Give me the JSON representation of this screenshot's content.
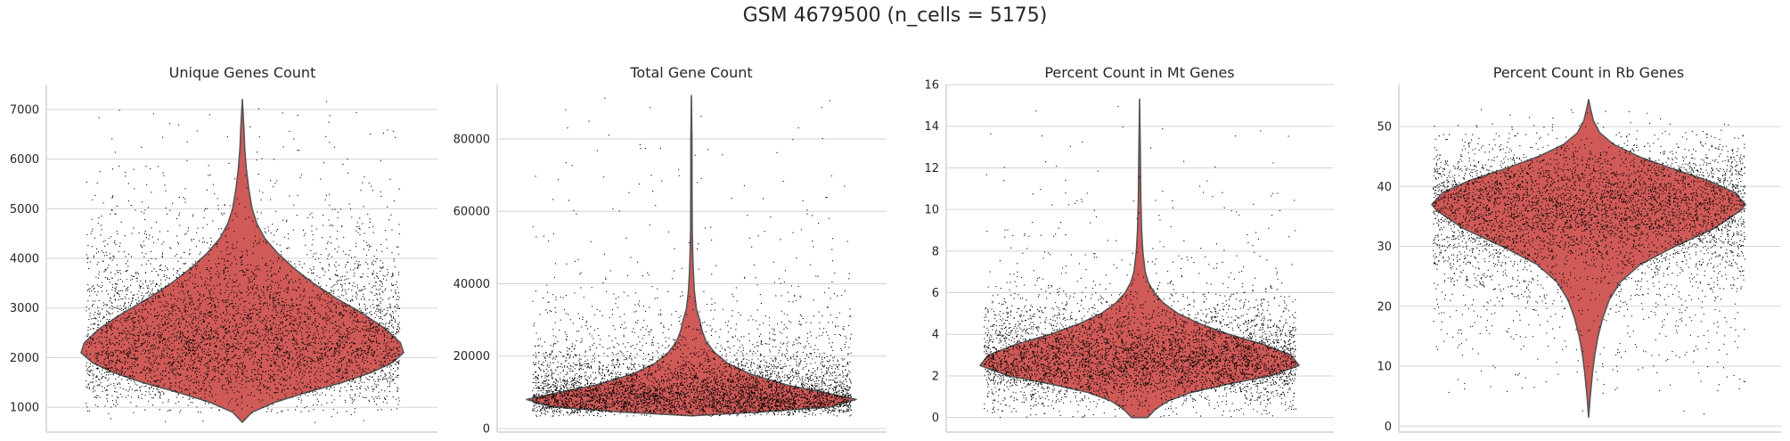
{
  "figure": {
    "title": "GSM 4679500 (n_cells = 5175)"
  },
  "colors": {
    "violin_fill": "#d05a58",
    "violin_edge": "#555555",
    "points": "#000000",
    "grid": "#d3d3d3",
    "axis": "#c8c8c8",
    "text": "#262626"
  },
  "chart_data": [
    {
      "type": "violin",
      "title": "Unique Genes Count",
      "xlabel": "",
      "ylabel": "",
      "ylim": [
        500,
        7500
      ],
      "yticks": [
        1000,
        2000,
        3000,
        4000,
        5000,
        6000,
        7000
      ],
      "grid": true,
      "n_points": 5175,
      "data_range": [
        700,
        7200
      ],
      "violin_profile": [
        [
          700,
          0.0
        ],
        [
          900,
          0.06
        ],
        [
          1100,
          0.2
        ],
        [
          1300,
          0.4
        ],
        [
          1500,
          0.62
        ],
        [
          1700,
          0.8
        ],
        [
          1900,
          0.93
        ],
        [
          2100,
          1.0
        ],
        [
          2300,
          0.98
        ],
        [
          2600,
          0.88
        ],
        [
          2900,
          0.74
        ],
        [
          3200,
          0.58
        ],
        [
          3500,
          0.44
        ],
        [
          3800,
          0.32
        ],
        [
          4100,
          0.22
        ],
        [
          4400,
          0.14
        ],
        [
          4700,
          0.09
        ],
        [
          5000,
          0.06
        ],
        [
          5400,
          0.04
        ],
        [
          5800,
          0.025
        ],
        [
          6200,
          0.015
        ],
        [
          6600,
          0.01
        ],
        [
          7200,
          0.0
        ]
      ]
    },
    {
      "type": "violin",
      "title": "Total Gene Count",
      "xlabel": "",
      "ylabel": "",
      "ylim": [
        -1000,
        95000
      ],
      "yticks": [
        0,
        20000,
        40000,
        60000,
        80000
      ],
      "grid": true,
      "n_points": 5175,
      "data_range": [
        3500,
        92000
      ],
      "violin_profile": [
        [
          3500,
          0.0
        ],
        [
          4500,
          0.4
        ],
        [
          6000,
          0.85
        ],
        [
          8000,
          1.0
        ],
        [
          10000,
          0.8
        ],
        [
          12000,
          0.58
        ],
        [
          15000,
          0.36
        ],
        [
          18000,
          0.22
        ],
        [
          21000,
          0.14
        ],
        [
          24000,
          0.09
        ],
        [
          27000,
          0.065
        ],
        [
          30000,
          0.05
        ],
        [
          33000,
          0.03
        ],
        [
          38000,
          0.018
        ],
        [
          43000,
          0.012
        ],
        [
          48000,
          0.008
        ],
        [
          55000,
          0.005
        ],
        [
          65000,
          0.004
        ],
        [
          80000,
          0.003
        ],
        [
          92000,
          0.0
        ]
      ]
    },
    {
      "type": "violin",
      "title": "Percent Count in Mt Genes",
      "xlabel": "",
      "ylabel": "",
      "ylim": [
        -0.7,
        16
      ],
      "yticks": [
        0,
        2,
        4,
        6,
        8,
        10,
        12,
        14,
        16
      ],
      "grid": true,
      "n_points": 5175,
      "data_range": [
        0,
        15.3
      ],
      "violin_profile": [
        [
          0.0,
          0.05
        ],
        [
          0.4,
          0.1
        ],
        [
          0.8,
          0.18
        ],
        [
          1.2,
          0.32
        ],
        [
          1.6,
          0.55
        ],
        [
          2.0,
          0.82
        ],
        [
          2.5,
          1.0
        ],
        [
          3.0,
          0.95
        ],
        [
          3.5,
          0.78
        ],
        [
          4.0,
          0.56
        ],
        [
          4.5,
          0.38
        ],
        [
          5.0,
          0.24
        ],
        [
          5.5,
          0.15
        ],
        [
          6.0,
          0.09
        ],
        [
          6.5,
          0.055
        ],
        [
          7.0,
          0.035
        ],
        [
          8.0,
          0.02
        ],
        [
          9.0,
          0.013
        ],
        [
          10.5,
          0.008
        ],
        [
          12.5,
          0.005
        ],
        [
          15.3,
          0.0
        ]
      ]
    },
    {
      "type": "violin",
      "title": "Percent Count in Rb Genes",
      "xlabel": "",
      "ylabel": "",
      "ylim": [
        -1,
        57
      ],
      "yticks": [
        0,
        10,
        20,
        30,
        40,
        50
      ],
      "grid": true,
      "n_points": 5175,
      "data_range": [
        1.5,
        54.5
      ],
      "violin_profile": [
        [
          1.5,
          0.0
        ],
        [
          5.0,
          0.01
        ],
        [
          9.0,
          0.025
        ],
        [
          12.0,
          0.04
        ],
        [
          15.0,
          0.06
        ],
        [
          18.0,
          0.09
        ],
        [
          21.0,
          0.13
        ],
        [
          24.0,
          0.2
        ],
        [
          27.0,
          0.33
        ],
        [
          30.0,
          0.55
        ],
        [
          33.0,
          0.8
        ],
        [
          36.0,
          0.97
        ],
        [
          37.0,
          1.0
        ],
        [
          39.0,
          0.93
        ],
        [
          41.0,
          0.76
        ],
        [
          43.0,
          0.53
        ],
        [
          45.0,
          0.32
        ],
        [
          47.0,
          0.16
        ],
        [
          49.0,
          0.07
        ],
        [
          51.0,
          0.03
        ],
        [
          53.0,
          0.012
        ],
        [
          54.5,
          0.0
        ]
      ]
    }
  ]
}
